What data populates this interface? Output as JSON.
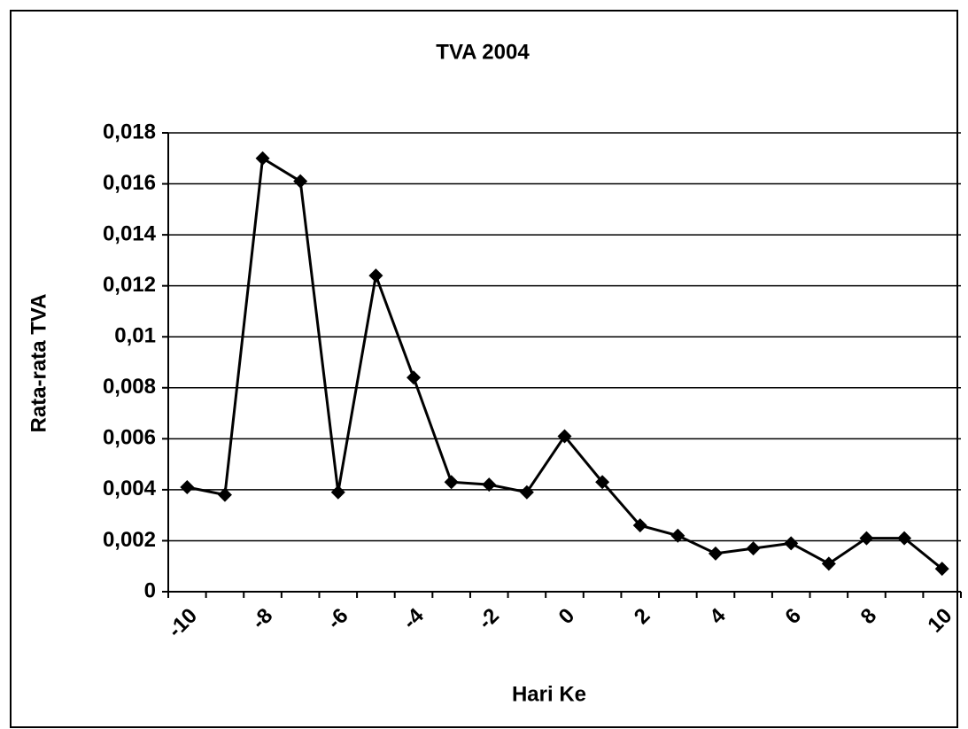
{
  "chart_data": {
    "type": "line",
    "title": "TVA 2004",
    "x_label": "Hari Ke",
    "y_label": "Rata-rata TVA",
    "categories": [
      "-10",
      null,
      "-8",
      null,
      "-6",
      null,
      "-4",
      null,
      "-2",
      null,
      "0",
      null,
      "2",
      null,
      "4",
      null,
      "6",
      null,
      "8",
      null,
      "10"
    ],
    "series": [
      {
        "name": "TVA",
        "color": "#000000",
        "values": [
          0.0041,
          0.0038,
          0.017,
          0.0161,
          0.0039,
          0.0124,
          0.0084,
          0.0043,
          0.0042,
          0.0039,
          0.0061,
          0.0043,
          0.0026,
          0.0022,
          0.0015,
          0.0017,
          0.0019,
          0.0011,
          0.0021,
          0.0021,
          0.0009
        ]
      }
    ],
    "ylim": [
      0,
      0.018
    ],
    "yticks": [
      0,
      {
        "value": 0.002,
        "label": "0,002"
      },
      {
        "value": 0.004,
        "label": "0,004"
      },
      {
        "value": 0.006,
        "label": "0,006"
      },
      {
        "value": 0.008,
        "label": "0,008"
      },
      {
        "value": 0.01,
        "label": "0,01"
      },
      {
        "value": 0.012,
        "label": "0,012"
      },
      {
        "value": 0.014,
        "label": "0,014"
      },
      {
        "value": 0.016,
        "label": "0,016"
      },
      {
        "value": 0.018,
        "label": "0,018"
      }
    ],
    "grid": true
  }
}
